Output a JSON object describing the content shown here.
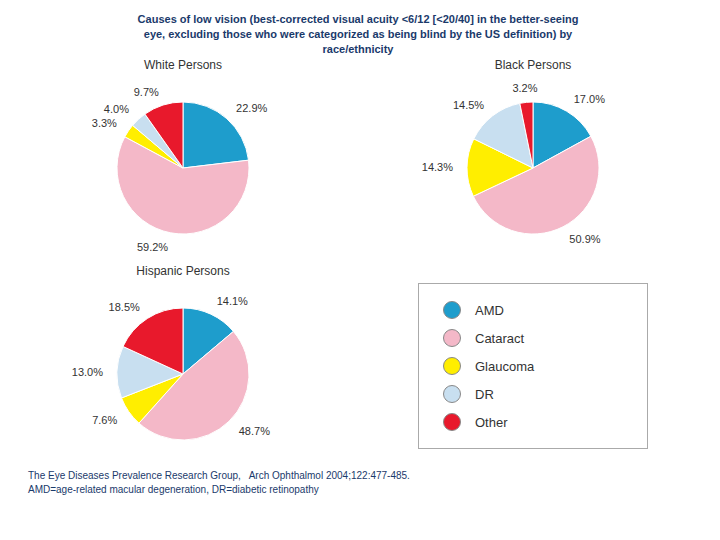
{
  "title": "Causes of low vision (best-corrected visual acuity <6/12 [<20/40] in the better-seeing\neye, excluding those who were categorized as being blind by the US definition) by\nrace/ethnicity",
  "annotations": [
    "The Eye Diseases Prevalence Research Group,   Arch Ophthalmol 2004;122:477-485.",
    "AMD=age-related macular degeneration, DR=diabetic retinopathy"
  ],
  "chart_data": [
    {
      "type": "pie",
      "title": "White Persons",
      "categories": [
        "AMD",
        "Cataract",
        "Glaucoma",
        "DR",
        "Other"
      ],
      "values": [
        22.9,
        59.2,
        3.3,
        4.0,
        9.7
      ],
      "value_labels": [
        "22.9%",
        "59.2%",
        "3.3%",
        "4.0%",
        "9.7%"
      ],
      "colors": [
        "#1e9dcc",
        "#f4b8c8",
        "#ffee00",
        "#c8dff0",
        "#e8192c"
      ],
      "data_labels": true
    },
    {
      "type": "pie",
      "title": "Black Persons",
      "categories": [
        "AMD",
        "Cataract",
        "Glaucoma",
        "DR",
        "Other"
      ],
      "values": [
        17.0,
        50.9,
        14.3,
        14.5,
        3.2
      ],
      "value_labels": [
        "17.0%",
        "50.9%",
        "14.3%",
        "14.5%",
        "3.2%"
      ],
      "colors": [
        "#1e9dcc",
        "#f4b8c8",
        "#ffee00",
        "#c8dff0",
        "#e8192c"
      ],
      "data_labels": true
    },
    {
      "type": "pie",
      "title": "Hispanic Persons",
      "categories": [
        "AMD",
        "Cataract",
        "Glaucoma",
        "DR",
        "Other"
      ],
      "values": [
        14.1,
        48.7,
        7.6,
        13.0,
        18.5
      ],
      "value_labels": [
        "14.1%",
        "48.7%",
        "7.6%",
        "13.0%",
        "18.5%"
      ],
      "colors": [
        "#1e9dcc",
        "#f4b8c8",
        "#ffee00",
        "#c8dff0",
        "#e8192c"
      ],
      "data_labels": true,
      "legend": "right"
    }
  ]
}
